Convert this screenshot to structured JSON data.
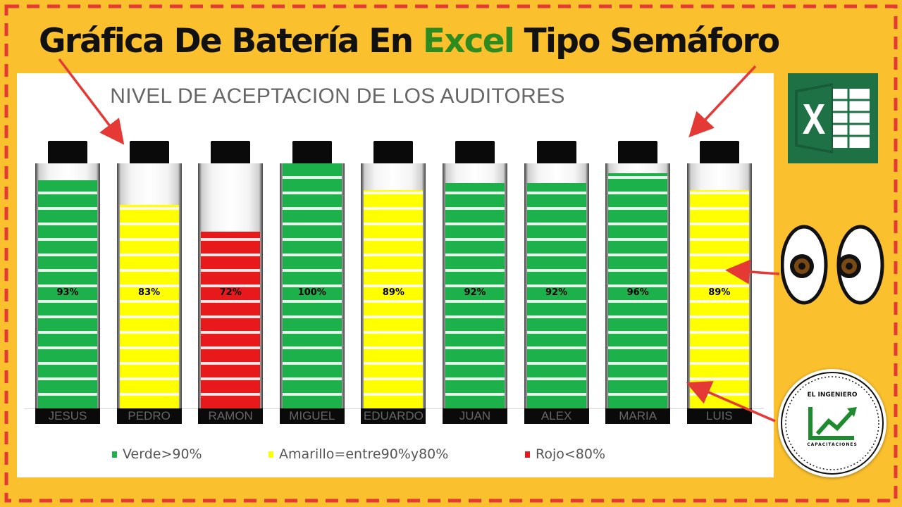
{
  "header": {
    "title_part1": "Gráfica De Batería En ",
    "title_highlight": "Excel",
    "title_part2": " Tipo Semáforo"
  },
  "colors": {
    "background": "#FBC02D",
    "border_dash": "#E53935",
    "highlight_text": "#2E8B1F",
    "green": "#1DB14B",
    "yellow": "#FFFF00",
    "red": "#E8191A"
  },
  "chart_data": {
    "type": "bar",
    "title": "NIVEL DE ACEPTACION DE LOS AUDITORES",
    "categories": [
      "JESUS",
      "PEDRO",
      "RAMON",
      "MIGUEL",
      "EDUARDO",
      "JUAN",
      "ALEX",
      "MARIA",
      "LUIS"
    ],
    "values": [
      93,
      83,
      72,
      100,
      89,
      92,
      92,
      96,
      89
    ],
    "labels": [
      "93%",
      "83%",
      "72%",
      "100%",
      "89%",
      "92%",
      "92%",
      "96%",
      "89%"
    ],
    "colors": [
      "green",
      "yellow",
      "red",
      "green",
      "yellow",
      "green",
      "green",
      "green",
      "yellow"
    ],
    "ylim": [
      0,
      100
    ],
    "grid": false,
    "legend_position": "bottom",
    "legend": [
      {
        "label": "Verde>90%",
        "color": "green"
      },
      {
        "label": "Amarillo=entre90%y80%",
        "color": "yellow"
      },
      {
        "label": "Rojo<80%",
        "color": "red"
      }
    ]
  },
  "badge": {
    "top_text": "EL INGENIERO",
    "bottom_text": "CAPACITACIONES"
  },
  "icons": {
    "excel": "excel-logo-icon",
    "eyes": "eyes-icon",
    "arrow": "red-arrow-icon"
  }
}
